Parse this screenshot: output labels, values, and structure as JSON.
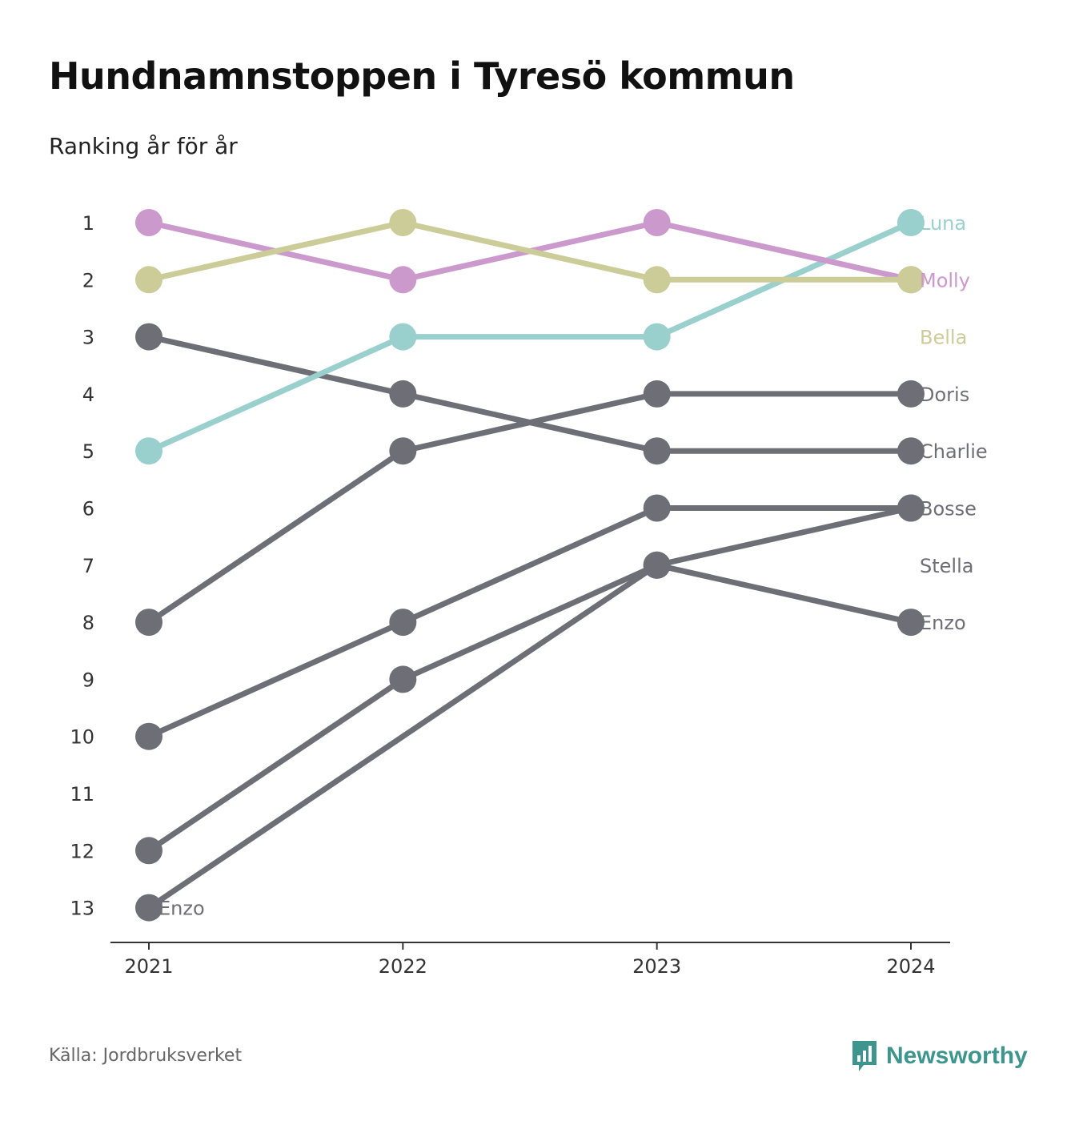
{
  "title": "Hundnamnstoppen i Tyresö kommun",
  "subtitle": "Ranking år för år",
  "source": "Källa: Jordbruksverket",
  "brand": {
    "name": "Newsworthy",
    "icon": "newsworthy-logo-icon",
    "color": "#3d958e"
  },
  "chart_data": {
    "type": "line",
    "subtype": "bump",
    "x": [
      "2021",
      "2022",
      "2023",
      "2024"
    ],
    "y_ticks": [
      1,
      2,
      3,
      4,
      5,
      6,
      7,
      8,
      9,
      10,
      11,
      12,
      13
    ],
    "ylim": [
      1,
      13
    ],
    "y_reversed": true,
    "grid": false,
    "series": [
      {
        "name": "Luna",
        "values": [
          5,
          3,
          3,
          1
        ],
        "color": "#99cfcc"
      },
      {
        "name": "Molly",
        "values": [
          1,
          2,
          1,
          2
        ],
        "color": "#cc99cc"
      },
      {
        "name": "Bella",
        "values": [
          2,
          1,
          2,
          2
        ],
        "color": "#cccc99"
      },
      {
        "name": "Doris",
        "values": [
          8,
          5,
          4,
          4
        ],
        "color": "#6e6e76"
      },
      {
        "name": "Charlie",
        "values": [
          3,
          4,
          5,
          5
        ],
        "color": "#6e6e76"
      },
      {
        "name": "Bosse",
        "values": [
          10,
          8,
          6,
          6
        ],
        "color": "#6e6e76"
      },
      {
        "name": "Stella",
        "values": [
          12,
          9,
          7,
          6
        ],
        "color": "#6e6e76"
      },
      {
        "name": "Enzo",
        "values": [
          13,
          null,
          7,
          8
        ],
        "color": "#6e6e76"
      }
    ],
    "end_labels": [
      {
        "text": "Luna",
        "rank": 1,
        "color": "#99cfcc"
      },
      {
        "text": "Molly",
        "rank": 2,
        "color": "#cc99cc"
      },
      {
        "text": "Bella",
        "rank": 3,
        "color": "#cccc99"
      },
      {
        "text": "Doris",
        "rank": 4,
        "color": "#6e6e76"
      },
      {
        "text": "Charlie",
        "rank": 5,
        "color": "#6e6e76"
      },
      {
        "text": "Bosse",
        "rank": 6,
        "color": "#6e6e76"
      },
      {
        "text": "Stella",
        "rank": 7,
        "color": "#6e6e76"
      },
      {
        "text": "Enzo",
        "rank": 8,
        "color": "#6e6e76"
      }
    ],
    "start_labels": [
      {
        "text": "Enzo",
        "rank": 13,
        "year": "2021",
        "color": "#6e6e76"
      }
    ]
  }
}
